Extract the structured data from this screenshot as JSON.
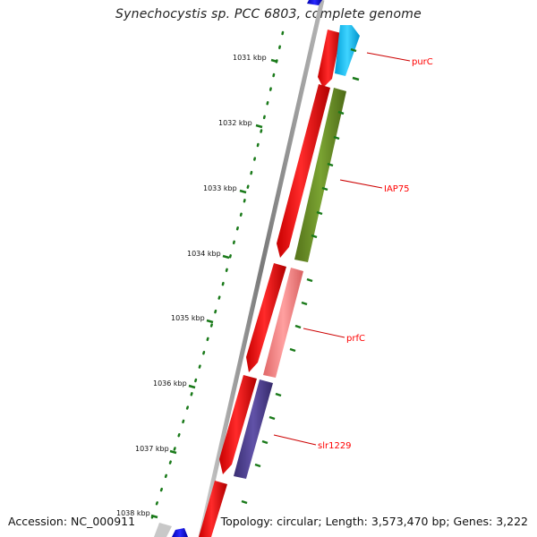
{
  "title": "Synechocystis sp. PCC 6803, complete genome",
  "footer": {
    "accession": "Accession: NC_000911",
    "topology": "Topology: circular; Length: 3,573,470 bp; Genes: 3,222"
  },
  "ticks": [
    "1031 kbp",
    "1032 kbp",
    "1033 kbp",
    "1034 kbp",
    "1035 kbp",
    "1036 kbp",
    "1037 kbp",
    "1038 kbp"
  ],
  "genes": [
    {
      "name": "purC",
      "color": "#ff0000"
    },
    {
      "name": "IAP75",
      "color": "#ff0000"
    },
    {
      "name": "prfC",
      "color": "#ff0000"
    },
    {
      "name": "slr1229",
      "color": "#ff0000"
    }
  ],
  "colors": {
    "backbone": "#8c8c8c",
    "tick": "#1a7a1a",
    "cds": "#ff0000",
    "purC_feature": "#00bfff",
    "IAP75_feature": "#6b8e23",
    "prfC_feature": "#f08080",
    "slr1229_feature": "#483d8b",
    "prior_feature": "#0000ee"
  }
}
